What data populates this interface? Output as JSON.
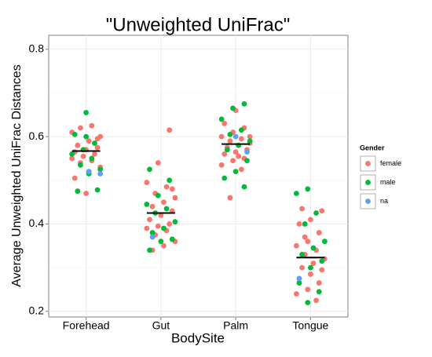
{
  "chart_data": {
    "type": "strip",
    "title": "\"Unweighted UniFrac\"",
    "x_label": "BodySite",
    "y_label": "Average Unweighted UniFrac Distances",
    "categories": [
      "Forehead",
      "Gut",
      "Palm",
      "Tongue"
    ],
    "ylim": [
      0.187,
      0.832
    ],
    "yticks": [
      0.2,
      0.4,
      0.6,
      0.8
    ],
    "y_minor_grid": [
      0.3,
      0.5,
      0.7
    ],
    "grid": true,
    "legend_title": "Gender",
    "legend_position": "right",
    "medians": [
      0.567,
      0.425,
      0.583,
      0.323
    ],
    "series": [
      {
        "name": "female",
        "color": "#F8766D",
        "x": [
          "Forehead",
          "Forehead",
          "Forehead",
          "Forehead",
          "Forehead",
          "Forehead",
          "Forehead",
          "Forehead",
          "Forehead",
          "Forehead",
          "Forehead",
          "Forehead",
          "Forehead",
          "Forehead",
          "Forehead",
          "Forehead",
          "Forehead",
          "Forehead",
          "Forehead",
          "Forehead",
          "Gut",
          "Gut",
          "Gut",
          "Gut",
          "Gut",
          "Gut",
          "Gut",
          "Gut",
          "Gut",
          "Gut",
          "Gut",
          "Gut",
          "Gut",
          "Gut",
          "Gut",
          "Gut",
          "Gut",
          "Gut",
          "Gut",
          "Gut",
          "Palm",
          "Palm",
          "Palm",
          "Palm",
          "Palm",
          "Palm",
          "Palm",
          "Palm",
          "Palm",
          "Palm",
          "Palm",
          "Palm",
          "Palm",
          "Palm",
          "Palm",
          "Palm",
          "Palm",
          "Palm",
          "Palm",
          "Palm",
          "Tongue",
          "Tongue",
          "Tongue",
          "Tongue",
          "Tongue",
          "Tongue",
          "Tongue",
          "Tongue",
          "Tongue",
          "Tongue",
          "Tongue",
          "Tongue",
          "Tongue",
          "Tongue",
          "Tongue",
          "Tongue",
          "Tongue",
          "Tongue",
          "Tongue",
          "Tongue"
        ],
        "values": [
          0.61,
          0.625,
          0.62,
          0.6,
          0.59,
          0.58,
          0.575,
          0.57,
          0.565,
          0.56,
          0.555,
          0.55,
          0.545,
          0.54,
          0.53,
          0.52,
          0.58,
          0.595,
          0.47,
          0.505,
          0.615,
          0.54,
          0.495,
          0.485,
          0.47,
          0.46,
          0.45,
          0.44,
          0.43,
          0.42,
          0.41,
          0.4,
          0.395,
          0.39,
          0.385,
          0.375,
          0.36,
          0.35,
          0.34,
          0.48,
          0.66,
          0.63,
          0.62,
          0.61,
          0.6,
          0.595,
          0.59,
          0.585,
          0.58,
          0.575,
          0.57,
          0.565,
          0.56,
          0.55,
          0.545,
          0.535,
          0.525,
          0.46,
          0.6,
          0.555,
          0.435,
          0.43,
          0.41,
          0.4,
          0.38,
          0.36,
          0.35,
          0.34,
          0.33,
          0.32,
          0.31,
          0.3,
          0.295,
          0.285,
          0.275,
          0.265,
          0.25,
          0.24,
          0.225,
          0.37
        ]
      },
      {
        "name": "male",
        "color": "#00BA38",
        "x": [
          "Forehead",
          "Forehead",
          "Forehead",
          "Forehead",
          "Forehead",
          "Forehead",
          "Forehead",
          "Forehead",
          "Forehead",
          "Forehead",
          "Forehead",
          "Forehead",
          "Gut",
          "Gut",
          "Gut",
          "Gut",
          "Gut",
          "Gut",
          "Gut",
          "Gut",
          "Gut",
          "Gut",
          "Gut",
          "Gut",
          "Palm",
          "Palm",
          "Palm",
          "Palm",
          "Palm",
          "Palm",
          "Palm",
          "Palm",
          "Palm",
          "Palm",
          "Palm",
          "Palm",
          "Tongue",
          "Tongue",
          "Tongue",
          "Tongue",
          "Tongue",
          "Tongue",
          "Tongue",
          "Tongue",
          "Tongue",
          "Tongue",
          "Tongue",
          "Tongue"
        ],
        "values": [
          0.655,
          0.605,
          0.585,
          0.57,
          0.56,
          0.55,
          0.535,
          0.525,
          0.515,
          0.475,
          0.478,
          0.6,
          0.525,
          0.5,
          0.465,
          0.445,
          0.435,
          0.425,
          0.405,
          0.39,
          0.38,
          0.365,
          0.36,
          0.34,
          0.675,
          0.665,
          0.64,
          0.615,
          0.605,
          0.59,
          0.58,
          0.57,
          0.545,
          0.52,
          0.505,
          0.485,
          0.48,
          0.47,
          0.425,
          0.4,
          0.36,
          0.345,
          0.33,
          0.315,
          0.3,
          0.265,
          0.245,
          0.22
        ]
      },
      {
        "name": "na",
        "color": "#619CFF",
        "x": [
          "Forehead",
          "Forehead",
          "Gut",
          "Palm",
          "Palm",
          "Tongue"
        ],
        "values": [
          0.515,
          0.52,
          0.37,
          0.565,
          0.6,
          0.275
        ]
      }
    ]
  }
}
